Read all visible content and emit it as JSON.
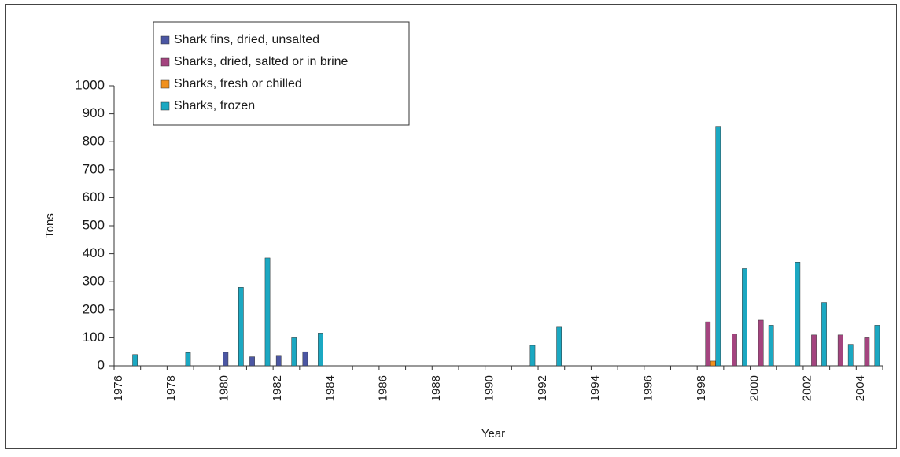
{
  "chart_data": {
    "type": "bar",
    "xlabel": "Year",
    "ylabel": "Tons",
    "categories": [
      "1976",
      null,
      "1978",
      null,
      "1980",
      null,
      "1982",
      null,
      "1984",
      null,
      "1986",
      null,
      "1988",
      null,
      "1990",
      null,
      "1992",
      null,
      "1994",
      null,
      "1996",
      null,
      "1998",
      null,
      "2000",
      null,
      "2002",
      null,
      "2004"
    ],
    "series": [
      {
        "name": "Shark fins, dried, unsalted",
        "color": "#4b56a3",
        "values": [
          0,
          0,
          0,
          0,
          48,
          32,
          37,
          50,
          0,
          0,
          0,
          0,
          0,
          0,
          0,
          0,
          0,
          0,
          0,
          0,
          0,
          0,
          0,
          0,
          0,
          0,
          0,
          0,
          0
        ]
      },
      {
        "name": "Sharks, dried, salted or in brine",
        "color": "#a4447f",
        "values": [
          0,
          0,
          0,
          0,
          0,
          0,
          0,
          0,
          0,
          0,
          0,
          0,
          0,
          0,
          0,
          0,
          0,
          0,
          0,
          0,
          0,
          0,
          157,
          113,
          163,
          0,
          110,
          110,
          100
        ]
      },
      {
        "name": "Sharks, fresh or chilled",
        "color": "#f0901e",
        "values": [
          0,
          0,
          0,
          0,
          0,
          0,
          0,
          0,
          0,
          0,
          0,
          0,
          0,
          0,
          0,
          0,
          0,
          0,
          0,
          0,
          0,
          0,
          17,
          0,
          0,
          0,
          0,
          0,
          0
        ]
      },
      {
        "name": "Sharks, frozen",
        "color": "#1ba8c2",
        "values": [
          40,
          0,
          47,
          0,
          280,
          385,
          100,
          117,
          0,
          0,
          0,
          0,
          0,
          0,
          0,
          73,
          138,
          0,
          0,
          0,
          0,
          0,
          855,
          347,
          145,
          370,
          226,
          77,
          145
        ]
      }
    ],
    "ylim": [
      0,
      1000
    ],
    "yticks": [
      0,
      100,
      200,
      300,
      400,
      500,
      600,
      700,
      800,
      900,
      1000
    ],
    "legend": "upper left"
  }
}
